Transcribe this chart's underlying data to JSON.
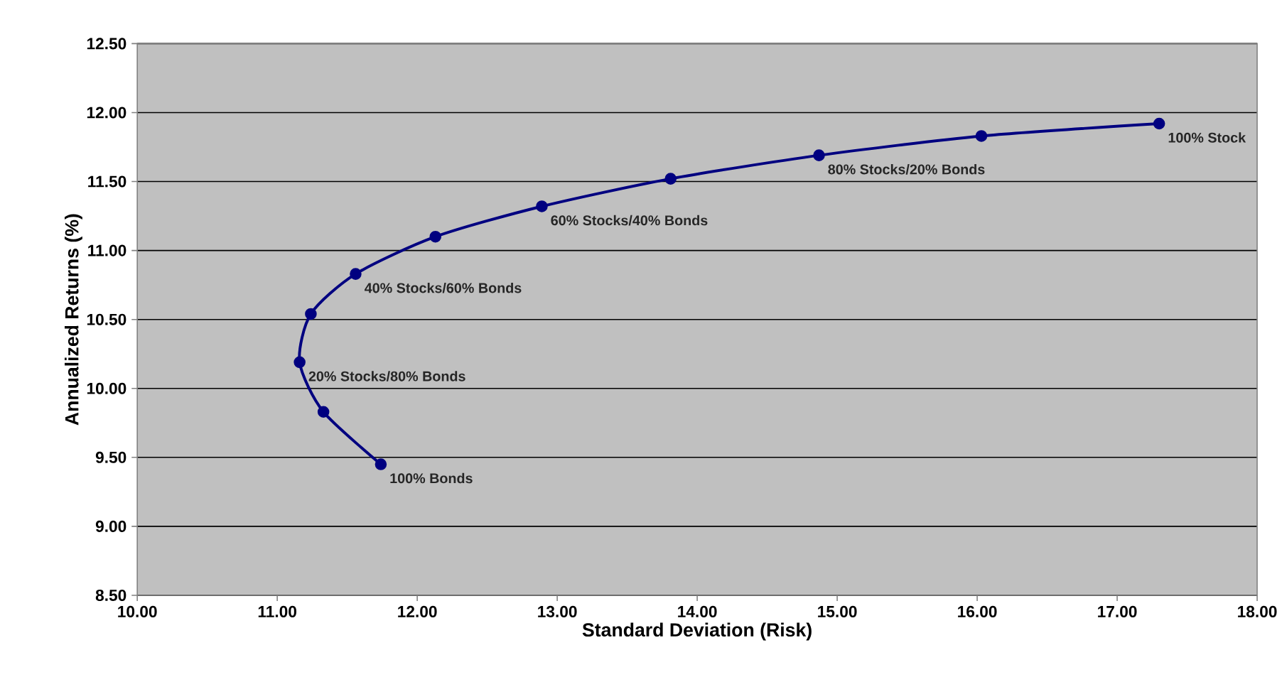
{
  "chart_data": {
    "type": "line",
    "xlabel": "Standard Deviation (Risk)",
    "ylabel": "Annualized Returns (%)",
    "xlim": [
      10,
      18
    ],
    "ylim": [
      8.5,
      12.5
    ],
    "xticks": [
      {
        "value": 10,
        "label": "10.00"
      },
      {
        "value": 11,
        "label": "11.00"
      },
      {
        "value": 12,
        "label": "12.00"
      },
      {
        "value": 13,
        "label": "13.00"
      },
      {
        "value": 14,
        "label": "14.00"
      },
      {
        "value": 15,
        "label": "15.00"
      },
      {
        "value": 16,
        "label": "16.00"
      },
      {
        "value": 17,
        "label": "17.00"
      },
      {
        "value": 18,
        "label": "18.00"
      }
    ],
    "yticks": [
      {
        "value": 8.5,
        "label": "8.50"
      },
      {
        "value": 9,
        "label": "9.00"
      },
      {
        "value": 9.5,
        "label": "9.50"
      },
      {
        "value": 10,
        "label": "10.00"
      },
      {
        "value": 10.5,
        "label": "10.50"
      },
      {
        "value": 11,
        "label": "11.00"
      },
      {
        "value": 11.5,
        "label": "11.50"
      },
      {
        "value": 12,
        "label": "12.00"
      },
      {
        "value": 12.5,
        "label": "12.50"
      }
    ],
    "grid": "y",
    "marker": "circle",
    "line_style": "solid",
    "series": [
      {
        "color": "#000080",
        "x": [
          11.74,
          11.33,
          11.16,
          11.24,
          11.56,
          12.13,
          12.89,
          13.81,
          14.87,
          16.03,
          17.3
        ],
        "values": [
          9.45,
          9.83,
          10.19,
          10.54,
          10.83,
          11.1,
          11.32,
          11.52,
          11.69,
          11.83,
          11.92
        ]
      }
    ],
    "annotations": [
      {
        "text": "100% Bonds",
        "x": 11.74,
        "y": 9.45
      },
      {
        "text": "20% Stocks/80% Bonds",
        "x": 11.16,
        "y": 10.19
      },
      {
        "text": "40% Stocks/60% Bonds",
        "x": 11.56,
        "y": 10.83
      },
      {
        "text": "60% Stocks/40% Bonds",
        "x": 12.89,
        "y": 11.32
      },
      {
        "text": "80% Stocks/20% Bonds",
        "x": 14.87,
        "y": 11.69
      },
      {
        "text": "100% Stock",
        "x": 17.3,
        "y": 11.92
      }
    ]
  }
}
